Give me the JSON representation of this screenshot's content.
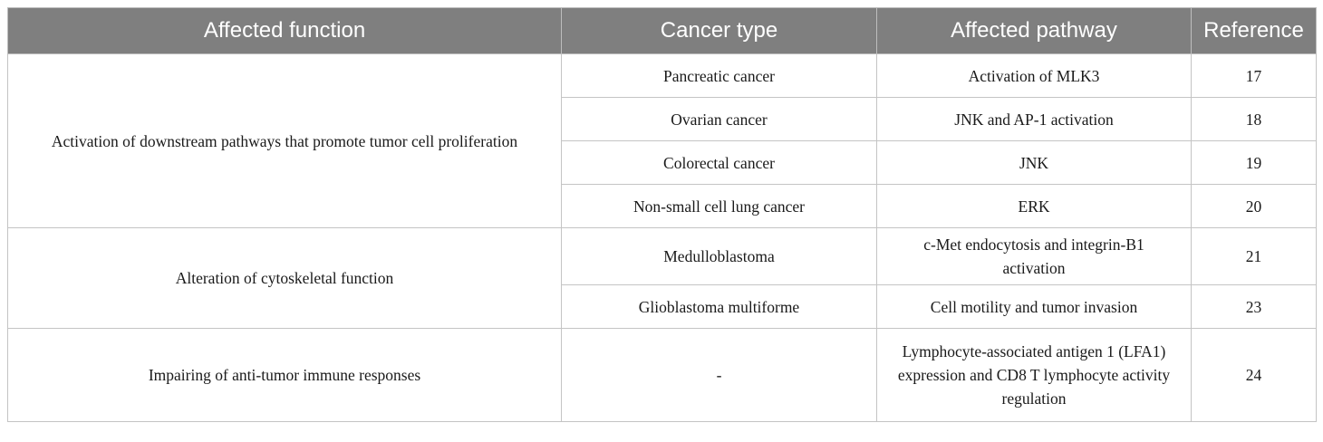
{
  "table": {
    "headers": [
      "Affected function",
      "Cancer type",
      "Affected pathway",
      "Reference"
    ],
    "groups": [
      {
        "function": "Activation of downstream pathways that promote tumor cell proliferation",
        "rows": [
          {
            "cancer_type": "Pancreatic cancer",
            "pathway": "Activation of MLK3",
            "reference": "17"
          },
          {
            "cancer_type": "Ovarian cancer",
            "pathway": "JNK and AP-1 activation",
            "reference": "18"
          },
          {
            "cancer_type": "Colorectal cancer",
            "pathway": "JNK",
            "reference": "19"
          },
          {
            "cancer_type": "Non-small cell lung cancer",
            "pathway": "ERK",
            "reference": "20"
          }
        ]
      },
      {
        "function": "Alteration of cytoskeletal function",
        "rows": [
          {
            "cancer_type": "Medulloblastoma",
            "pathway": "c-Met endocytosis and integrin-B1 activation",
            "reference": "21"
          },
          {
            "cancer_type": "Glioblastoma multiforme",
            "pathway": "Cell motility and tumor invasion",
            "reference": "23"
          }
        ]
      },
      {
        "function": "Impairing of anti-tumor immune responses",
        "rows": [
          {
            "cancer_type": "-",
            "pathway": "Lymphocyte-associated antigen 1 (LFA1) expression and CD8 T lymphocyte activity regulation",
            "reference": "24"
          }
        ]
      }
    ]
  }
}
